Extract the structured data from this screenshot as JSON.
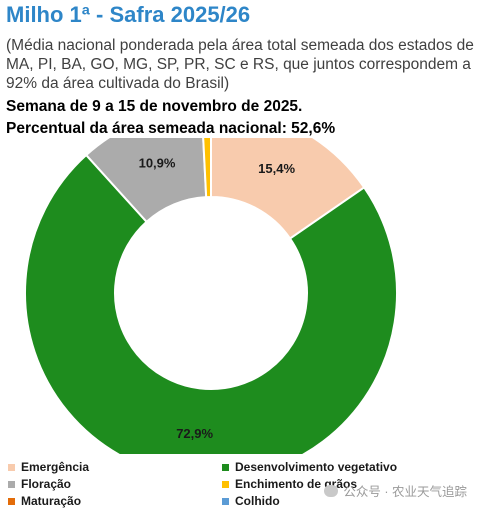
{
  "header": {
    "title": "Milho 1ª - Safra 2025/26",
    "subtitle": "(Média nacional ponderada pela área total semeada dos estados de MA, PI, BA, GO, MG, SP, PR, SC e RS, que juntos correspondem a 92% da área cultivada do Brasil)",
    "week": "Semana de 9 a 15 de novembro de 2025.",
    "percent_line": "Percentual da área semeada nacional: 52,6%"
  },
  "watermark": "公众号 · 农业天气追踪",
  "chart_data": {
    "type": "pie",
    "donut": true,
    "title": "Milho 1ª - Safra 2025/26",
    "slices": [
      {
        "name": "Emergência",
        "value": 15.4,
        "label": "15,4%",
        "color": "#F8CBAD"
      },
      {
        "name": "Desenvolvimento vegetativo",
        "value": 72.9,
        "label": "72,9%",
        "color": "#1E8C1E"
      },
      {
        "name": "Floração",
        "value": 10.9,
        "label": "10,9%",
        "color": "#ABABAB"
      },
      {
        "name": "Enchimento de grãos",
        "value": 0.8,
        "label": "",
        "color": "#FFC000"
      },
      {
        "name": "Maturação",
        "value": 0,
        "label": "",
        "color": "#E36C09"
      },
      {
        "name": "Colhido",
        "value": 0,
        "label": "",
        "color": "#5B9BD5"
      }
    ],
    "legend": [
      "Emergência",
      "Desenvolvimento vegetativo",
      "Floração",
      "Enchimento de grãos",
      "Maturação",
      "Colhido"
    ],
    "legend_position": "bottom"
  }
}
